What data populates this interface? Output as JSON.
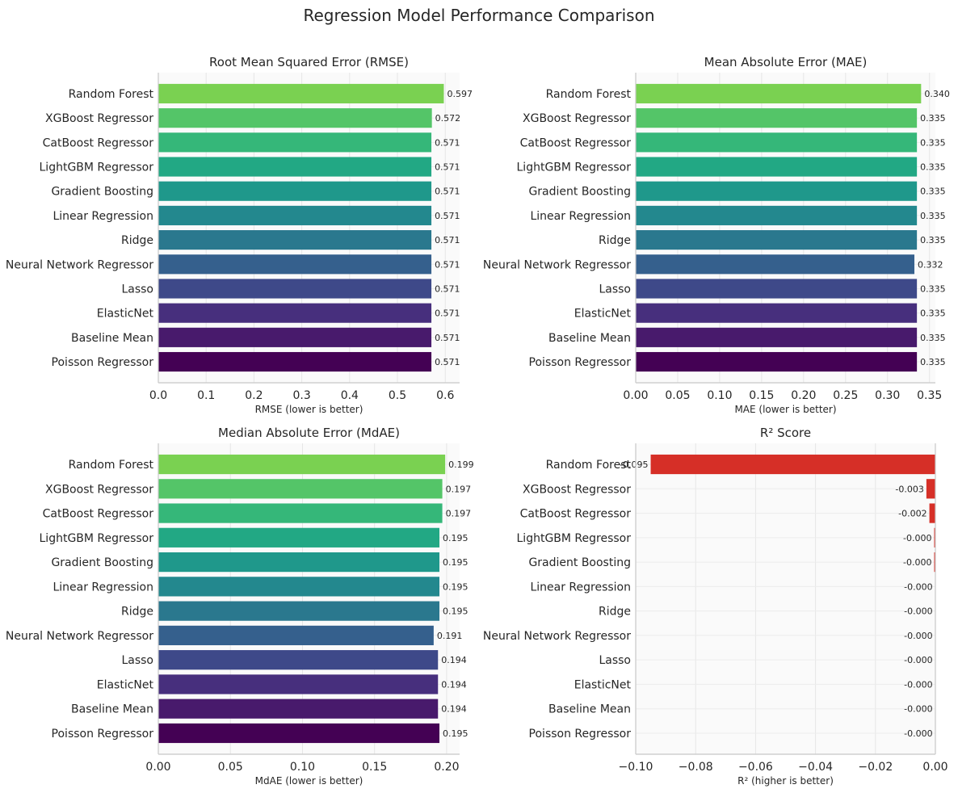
{
  "figure": {
    "title": "Regression Model Performance Comparison"
  },
  "chart_data": [
    {
      "type": "bar",
      "orientation": "horizontal",
      "title": "Root Mean Squared Error (RMSE)",
      "xlabel": "RMSE (lower is better)",
      "ylabel": "",
      "xlim": [
        0,
        0.63
      ],
      "xticks": [
        0.0,
        0.1,
        0.2,
        0.3,
        0.4,
        0.5,
        0.6
      ],
      "tick_labels": [
        "0.0",
        "0.1",
        "0.2",
        "0.3",
        "0.4",
        "0.5",
        "0.6"
      ],
      "grid": true,
      "categories": [
        "Random Forest",
        "XGBoost Regressor",
        "CatBoost Regressor",
        "LightGBM Regressor",
        "Gradient Boosting",
        "Linear Regression",
        "Ridge",
        "Neural Network Regressor",
        "Lasso",
        "ElasticNet",
        "Baseline Mean",
        "Poisson Regressor"
      ],
      "values": [
        0.597,
        0.572,
        0.571,
        0.571,
        0.571,
        0.571,
        0.571,
        0.571,
        0.571,
        0.571,
        0.571,
        0.571
      ],
      "value_labels": [
        "0.597",
        "0.572",
        "0.571",
        "0.571",
        "0.571",
        "0.571",
        "0.571",
        "0.571",
        "0.571",
        "0.571",
        "0.571",
        "0.571"
      ],
      "colors": [
        "#7ad151",
        "#54c568",
        "#35b779",
        "#22a884",
        "#1f988b",
        "#23888e",
        "#2a788e",
        "#35608d",
        "#3e4989",
        "#472f7d",
        "#481a6c",
        "#440154"
      ]
    },
    {
      "type": "bar",
      "orientation": "horizontal",
      "title": "Mean Absolute Error (MAE)",
      "xlabel": "MAE (lower is better)",
      "ylabel": "",
      "xlim": [
        0,
        0.357
      ],
      "xticks": [
        0.0,
        0.05,
        0.1,
        0.15,
        0.2,
        0.25,
        0.3,
        0.35
      ],
      "tick_labels": [
        "0.00",
        "0.05",
        "0.10",
        "0.15",
        "0.20",
        "0.25",
        "0.30",
        "0.35"
      ],
      "grid": true,
      "categories": [
        "Random Forest",
        "XGBoost Regressor",
        "CatBoost Regressor",
        "LightGBM Regressor",
        "Gradient Boosting",
        "Linear Regression",
        "Ridge",
        "Neural Network Regressor",
        "Lasso",
        "ElasticNet",
        "Baseline Mean",
        "Poisson Regressor"
      ],
      "values": [
        0.34,
        0.335,
        0.335,
        0.335,
        0.335,
        0.335,
        0.335,
        0.332,
        0.335,
        0.335,
        0.335,
        0.335
      ],
      "value_labels": [
        "0.340",
        "0.335",
        "0.335",
        "0.335",
        "0.335",
        "0.335",
        "0.335",
        "0.332",
        "0.335",
        "0.335",
        "0.335",
        "0.335"
      ],
      "colors": [
        "#7ad151",
        "#54c568",
        "#35b779",
        "#22a884",
        "#1f988b",
        "#23888e",
        "#2a788e",
        "#35608d",
        "#3e4989",
        "#472f7d",
        "#481a6c",
        "#440154"
      ]
    },
    {
      "type": "bar",
      "orientation": "horizontal",
      "title": "Median Absolute Error (MdAE)",
      "xlabel": "MdAE (lower is better)",
      "ylabel": "",
      "xlim": [
        0,
        0.209
      ],
      "xticks": [
        0.0,
        0.05,
        0.1,
        0.15,
        0.2
      ],
      "tick_labels": [
        "0.00",
        "0.05",
        "0.10",
        "0.15",
        "0.20"
      ],
      "grid": true,
      "categories": [
        "Random Forest",
        "XGBoost Regressor",
        "CatBoost Regressor",
        "LightGBM Regressor",
        "Gradient Boosting",
        "Linear Regression",
        "Ridge",
        "Neural Network Regressor",
        "Lasso",
        "ElasticNet",
        "Baseline Mean",
        "Poisson Regressor"
      ],
      "values": [
        0.199,
        0.197,
        0.197,
        0.195,
        0.195,
        0.195,
        0.195,
        0.191,
        0.194,
        0.194,
        0.194,
        0.195
      ],
      "value_labels": [
        "0.199",
        "0.197",
        "0.197",
        "0.195",
        "0.195",
        "0.195",
        "0.195",
        "0.191",
        "0.194",
        "0.194",
        "0.194",
        "0.195"
      ],
      "colors": [
        "#7ad151",
        "#54c568",
        "#35b779",
        "#22a884",
        "#1f988b",
        "#23888e",
        "#2a788e",
        "#35608d",
        "#3e4989",
        "#472f7d",
        "#481a6c",
        "#440154"
      ]
    },
    {
      "type": "bar",
      "orientation": "horizontal",
      "title": "R² Score",
      "xlabel": "R² (higher is better)",
      "ylabel": "",
      "xlim": [
        -0.1,
        0
      ],
      "xticks": [
        -0.1,
        -0.08,
        -0.06,
        -0.04,
        -0.02,
        0.0
      ],
      "tick_labels": [
        "−0.10",
        "−0.08",
        "−0.06",
        "−0.04",
        "−0.02",
        "0.00"
      ],
      "grid": true,
      "categories": [
        "Random Forest",
        "XGBoost Regressor",
        "CatBoost Regressor",
        "LightGBM Regressor",
        "Gradient Boosting",
        "Linear Regression",
        "Ridge",
        "Neural Network Regressor",
        "Lasso",
        "ElasticNet",
        "Baseline Mean",
        "Poisson Regressor"
      ],
      "values": [
        -0.095,
        -0.003,
        -0.002,
        -0.0004,
        -0.0004,
        -0.0001,
        -0.0001,
        -0.0001,
        -0.0001,
        -0.0001,
        -0.0001,
        -0.0001
      ],
      "value_labels": [
        "-0.095",
        "-0.003",
        "-0.002",
        "-0.000",
        "-0.000",
        "-0.000",
        "-0.000",
        "-0.000",
        "-0.000",
        "-0.000",
        "-0.000",
        "-0.000"
      ],
      "colors": [
        "#d62f27",
        "#d62f27",
        "#d62f27",
        "#d62f27",
        "#d62f27",
        "#d62f27",
        "#d62f27",
        "#d62f27",
        "#d62f27",
        "#d62f27",
        "#d62f27",
        "#d62f27"
      ]
    }
  ]
}
